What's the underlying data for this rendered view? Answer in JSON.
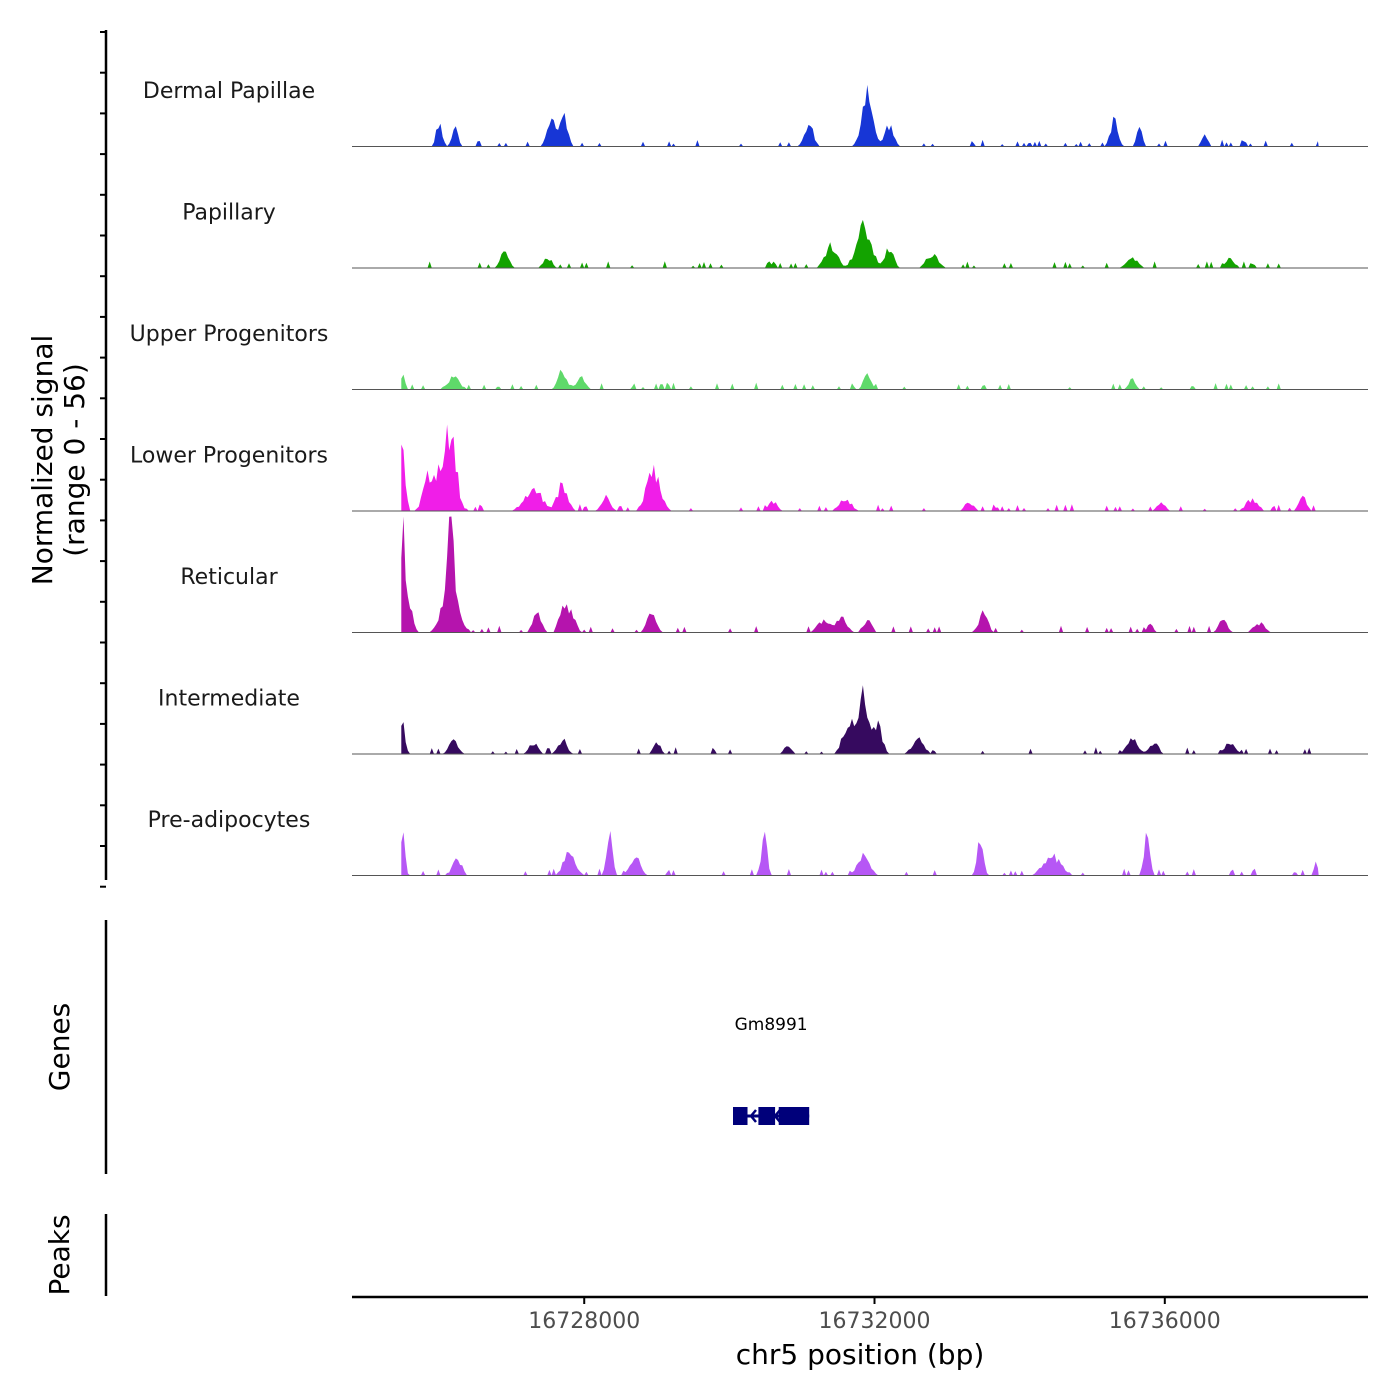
{
  "chart_data": {
    "type": "area",
    "subtype": "genome-coverage-track",
    "ylabel_line1": "Normalized signal",
    "ylabel_line2": "(range 0 - 56)",
    "yrange": [
      0,
      56
    ],
    "xlabel": "chr5 position (bp)",
    "xlim": [
      16724800,
      16738800
    ],
    "xticks": [
      16728000,
      16732000,
      16736000
    ],
    "xtick_labels": [
      "16728000",
      "16732000",
      "16736000"
    ],
    "region_start": 16725480,
    "region_end": 16738120,
    "tracks": [
      {
        "name": "Dermal Papillae",
        "color": "#1736d6",
        "peaks": [
          [
            16726000,
            20,
            40
          ],
          [
            16726220,
            18,
            40
          ],
          [
            16727550,
            22,
            60
          ],
          [
            16727720,
            24,
            50
          ],
          [
            16731100,
            18,
            60
          ],
          [
            16731900,
            50,
            70
          ],
          [
            16732200,
            18,
            60
          ],
          [
            16735300,
            22,
            50
          ],
          [
            16735650,
            14,
            40
          ],
          [
            16736550,
            12,
            40
          ]
        ]
      },
      {
        "name": "Papillary",
        "color": "#13a300",
        "peaks": [
          [
            16726900,
            12,
            60
          ],
          [
            16727500,
            8,
            60
          ],
          [
            16731400,
            20,
            80
          ],
          [
            16731850,
            34,
            100
          ],
          [
            16732200,
            16,
            60
          ],
          [
            16732800,
            12,
            80
          ],
          [
            16735550,
            8,
            80
          ],
          [
            16736900,
            8,
            60
          ]
        ]
      },
      {
        "name": "Upper Progenitors",
        "color": "#5fd96a",
        "peaks": [
          [
            16725500,
            14,
            30
          ],
          [
            16726200,
            10,
            80
          ],
          [
            16727700,
            16,
            60
          ],
          [
            16727950,
            10,
            60
          ],
          [
            16731900,
            12,
            50
          ],
          [
            16735550,
            8,
            50
          ]
        ]
      },
      {
        "name": "Lower Progenitors",
        "color": "#f01ee8",
        "peaks": [
          [
            16725490,
            55,
            40
          ],
          [
            16725850,
            28,
            70
          ],
          [
            16726050,
            40,
            80
          ],
          [
            16726180,
            50,
            70
          ],
          [
            16727300,
            18,
            120
          ],
          [
            16727700,
            22,
            70
          ],
          [
            16728300,
            12,
            60
          ],
          [
            16728950,
            34,
            90
          ],
          [
            16730600,
            8,
            60
          ],
          [
            16731600,
            10,
            80
          ],
          [
            16733300,
            8,
            60
          ],
          [
            16735950,
            8,
            50
          ],
          [
            16737200,
            10,
            80
          ],
          [
            16737900,
            12,
            50
          ]
        ]
      },
      {
        "name": "Reticular",
        "color": "#b514ad",
        "peaks": [
          [
            16725500,
            95,
            40
          ],
          [
            16725620,
            15,
            40
          ],
          [
            16726150,
            40,
            100
          ],
          [
            16726160,
            75,
            40
          ],
          [
            16727350,
            15,
            60
          ],
          [
            16727700,
            22,
            50
          ],
          [
            16727820,
            15,
            60
          ],
          [
            16728930,
            18,
            60
          ],
          [
            16731300,
            10,
            80
          ],
          [
            16731550,
            12,
            70
          ],
          [
            16731900,
            10,
            60
          ],
          [
            16733500,
            16,
            60
          ],
          [
            16735800,
            8,
            40
          ],
          [
            16736800,
            10,
            60
          ],
          [
            16737300,
            8,
            80
          ]
        ]
      },
      {
        "name": "Intermediate",
        "color": "#360a5f",
        "peaks": [
          [
            16725490,
            32,
            35
          ],
          [
            16726200,
            12,
            60
          ],
          [
            16727300,
            10,
            60
          ],
          [
            16727700,
            12,
            60
          ],
          [
            16729000,
            10,
            50
          ],
          [
            16730800,
            8,
            50
          ],
          [
            16731650,
            28,
            80
          ],
          [
            16731850,
            48,
            80
          ],
          [
            16732050,
            22,
            60
          ],
          [
            16732600,
            12,
            80
          ],
          [
            16735550,
            14,
            70
          ],
          [
            16735850,
            10,
            60
          ],
          [
            16736900,
            10,
            70
          ]
        ]
      },
      {
        "name": "Pre-adipocytes",
        "color": "#b657f5",
        "peaks": [
          [
            16725500,
            32,
            30
          ],
          [
            16726250,
            14,
            60
          ],
          [
            16727800,
            20,
            80
          ],
          [
            16728350,
            32,
            40
          ],
          [
            16728700,
            16,
            70
          ],
          [
            16730480,
            34,
            40
          ],
          [
            16731850,
            16,
            80
          ],
          [
            16733460,
            34,
            40
          ],
          [
            16734450,
            16,
            120
          ],
          [
            16735750,
            34,
            40
          ],
          [
            16738080,
            16,
            20
          ]
        ]
      }
    ],
    "genes": [
      {
        "name": "Gm8991",
        "strand": "-",
        "start": 16730050,
        "end": 16731100,
        "exons": [
          [
            16730050,
            16730250
          ],
          [
            16730400,
            16730630
          ],
          [
            16730680,
            16731100
          ]
        ],
        "color": "#00007a"
      }
    ],
    "panel_titles": {
      "genes": "Genes",
      "peaks": "Peaks"
    }
  }
}
